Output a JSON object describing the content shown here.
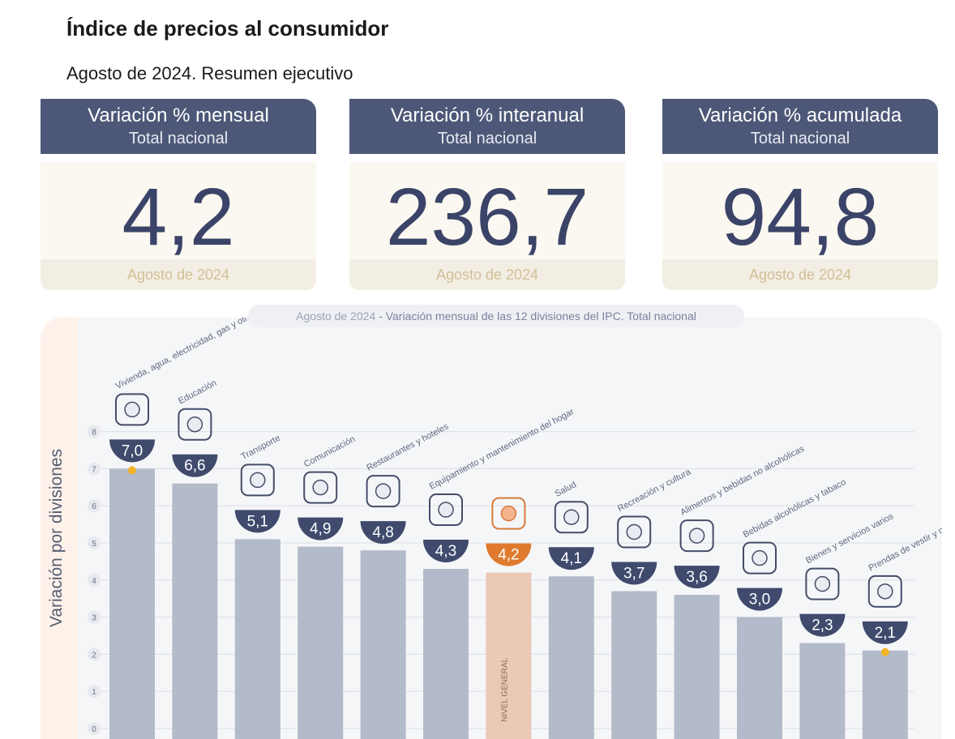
{
  "header": {
    "title": "Índice de precios al consumidor",
    "subtitle": "Agosto de 2024. Resumen ejecutivo"
  },
  "kpis": [
    {
      "title": "Variación % mensual",
      "subtitle": "Total nacional",
      "value": "4,2",
      "footer": "Agosto de 2024"
    },
    {
      "title": "Variación % interanual",
      "subtitle": "Total nacional",
      "value": "236,7",
      "footer": "Agosto de 2024"
    },
    {
      "title": "Variación % acumulada",
      "subtitle": "Total nacional",
      "value": "94,8",
      "footer": "Agosto de 2024"
    }
  ],
  "chart_data": {
    "type": "bar",
    "title_date": "Agosto de 2024",
    "title": " - Variación mensual de las 12 divisiones del IPC. Total nacional",
    "ylabel": "Variación por divisiones",
    "ylim": [
      0,
      8
    ],
    "yticks": [
      "0",
      "1",
      "2",
      "3",
      "4",
      "5",
      "6",
      "7",
      "8"
    ],
    "grid": true,
    "categories": [
      "Vivienda, agua, electricidad, gas y otros combustibles",
      "Educación",
      "Transporte",
      "Comunicación",
      "Restaurantes y hoteles",
      "Equipamiento y mantenimiento del hogar",
      "NIVEL GENERAL",
      "Salud",
      "Recreación y cultura",
      "Alimentos y bebidas no alcohólicas",
      "Bebidas alcohólicas y tabaco",
      "Bienes y servicios varios",
      "Prendas de vestir y calzado"
    ],
    "values": [
      7.0,
      6.6,
      5.1,
      4.9,
      4.8,
      4.3,
      4.2,
      4.1,
      3.7,
      3.6,
      3.0,
      2.3,
      2.1
    ],
    "value_labels": [
      "7,0",
      "6,6",
      "5,1",
      "4,9",
      "4,8",
      "4,3",
      "4,2",
      "4,1",
      "3,7",
      "3,6",
      "3,0",
      "2,3",
      "2,1"
    ],
    "highlight_index": 6,
    "bar_color": "#b3bac9",
    "highlight_color": "#ebc9b6",
    "badge_color": "#3f4a6d",
    "highlight_badge_color": "#e07a2e",
    "marker_color": "#f0b429",
    "marker_indices": [
      0,
      12
    ],
    "icons": [
      "lightbulb-icon",
      "book-icon",
      "bus-car-icon",
      "phone-icon",
      "plate-cutlery-icon",
      "washing-machine-icon",
      "basket-icon",
      "medical-cross-icon",
      "umbrella-sun-icon",
      "bread-chicken-icon",
      "bottle-glass-icon",
      "scissors-icon",
      "tshirt-icon"
    ]
  }
}
